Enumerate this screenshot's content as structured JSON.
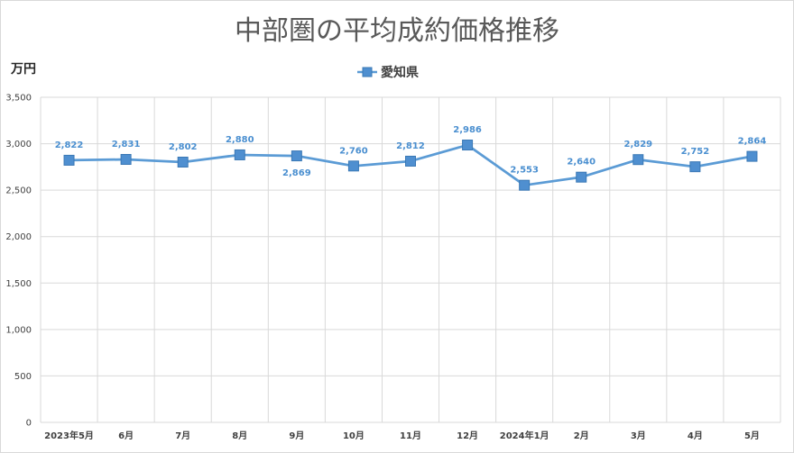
{
  "chart_data": {
    "type": "line",
    "title": "中部圏の平均成約価格推移",
    "ylabel": "万円",
    "xlabel": "",
    "categories": [
      "2023年5月",
      "6月",
      "7月",
      "8月",
      "9月",
      "10月",
      "11月",
      "12月",
      "2024年1月",
      "2月",
      "3月",
      "4月",
      "5月"
    ],
    "series": [
      {
        "name": "愛知県",
        "values": [
          2822,
          2831,
          2802,
          2880,
          2869,
          2760,
          2812,
          2986,
          2553,
          2640,
          2829,
          2752,
          2864
        ],
        "labels": [
          "2,822",
          "2,831",
          "2,802",
          "2,880",
          "2,869",
          "2,760",
          "2,812",
          "2,986",
          "2,553",
          "2,640",
          "2,829",
          "2,752",
          "2,864"
        ]
      }
    ],
    "ylim": [
      0,
      3500
    ],
    "yticks": [
      0,
      500,
      1000,
      1500,
      2000,
      2500,
      3000,
      3500
    ],
    "ytick_labels": [
      "0",
      "500",
      "1,000",
      "1,500",
      "2,000",
      "2,500",
      "3,000",
      "3,500"
    ],
    "grid": true,
    "legend_position": "top-center",
    "colors": {
      "series": "#5b9bd5",
      "marker_fill": "#4f8fd0",
      "marker_edge": "#3a78b5",
      "grid": "#d9d9d9"
    }
  }
}
